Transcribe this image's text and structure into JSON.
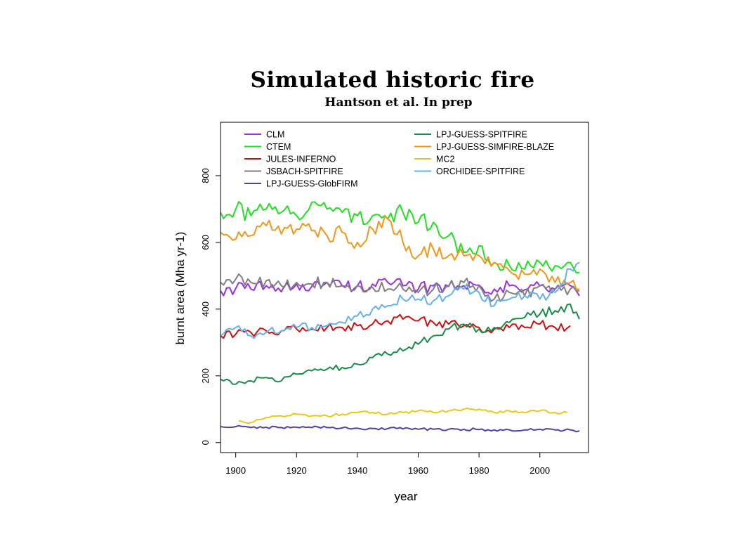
{
  "title": "Simulated historic fire",
  "subtitle": "Hantson et al. In prep",
  "chart_data": {
    "type": "line",
    "xlabel": "year",
    "ylabel": "burnt area (Mha yr-1)",
    "xlim": [
      1895,
      2016
    ],
    "ylim": [
      -30,
      960
    ],
    "xticks": [
      1900,
      1920,
      1940,
      1960,
      1980,
      2000
    ],
    "yticks": [
      0,
      200,
      400,
      600,
      800
    ],
    "legend": "top, two columns",
    "grid": false,
    "series": [
      {
        "name": "CLM",
        "color": "#9b30e0",
        "x": [
          1895,
          1900,
          1905,
          1910,
          1915,
          1920,
          1925,
          1930,
          1935,
          1940,
          1945,
          1950,
          1955,
          1960,
          1965,
          1970,
          1975,
          1980,
          1985,
          1990,
          1995,
          2000,
          2005,
          2010,
          2013
        ],
        "y": [
          455,
          462,
          460,
          470,
          452,
          475,
          468,
          480,
          470,
          470,
          475,
          480,
          470,
          460,
          470,
          468,
          470,
          472,
          460,
          470,
          458,
          470,
          460,
          470,
          440
        ]
      },
      {
        "name": "CTEM",
        "color": "#22e022",
        "x": [
          1895,
          1900,
          1905,
          1910,
          1915,
          1920,
          1925,
          1930,
          1935,
          1940,
          1945,
          1950,
          1955,
          1960,
          1965,
          1970,
          1975,
          1980,
          1985,
          1990,
          1995,
          2000,
          2005,
          2010,
          2013
        ],
        "y": [
          690,
          700,
          680,
          700,
          690,
          680,
          720,
          700,
          690,
          680,
          680,
          670,
          690,
          660,
          660,
          620,
          570,
          590,
          540,
          530,
          520,
          540,
          530,
          540,
          510
        ]
      },
      {
        "name": "JULES-INFERNO",
        "color": "#cc1111",
        "x": [
          1895,
          1900,
          1905,
          1910,
          1915,
          1920,
          1925,
          1930,
          1935,
          1940,
          1945,
          1950,
          1955,
          1960,
          1965,
          1970,
          1975,
          1980,
          1985,
          1990,
          1995,
          2000,
          2005,
          2010
        ],
        "y": [
          320,
          325,
          330,
          335,
          335,
          340,
          340,
          345,
          345,
          350,
          355,
          365,
          370,
          365,
          360,
          355,
          350,
          345,
          340,
          345,
          345,
          355,
          345,
          350
        ]
      },
      {
        "name": "JSBACH-SPITFIRE",
        "color": "#808080",
        "x": [
          1895,
          1900,
          1905,
          1910,
          1915,
          1920,
          1925,
          1930,
          1935,
          1940,
          1945,
          1950,
          1955,
          1960,
          1965,
          1970,
          1975,
          1980,
          1985,
          1990,
          1995,
          2000,
          2005,
          2010,
          2013
        ],
        "y": [
          480,
          490,
          480,
          485,
          470,
          480,
          475,
          480,
          470,
          470,
          465,
          460,
          460,
          450,
          460,
          470,
          480,
          470,
          430,
          450,
          440,
          470,
          460,
          460,
          455
        ]
      },
      {
        "name": "LPJ-GUESS-GlobFIRM",
        "color": "#5540a0",
        "x": [
          1895,
          1900,
          1905,
          1910,
          1915,
          1920,
          1925,
          1930,
          1935,
          1940,
          1945,
          1950,
          1955,
          1960,
          1965,
          1970,
          1975,
          1980,
          1985,
          1990,
          1995,
          2000,
          2005,
          2010,
          2013
        ],
        "y": [
          48,
          48,
          45,
          46,
          45,
          46,
          45,
          45,
          44,
          43,
          42,
          42,
          41,
          40,
          40,
          40,
          40,
          39,
          38,
          38,
          38,
          40,
          38,
          38,
          35
        ]
      },
      {
        "name": "LPJ-GUESS-SPITFIRE",
        "color": "#1a8c4a",
        "x": [
          1895,
          1900,
          1905,
          1910,
          1915,
          1920,
          1925,
          1930,
          1935,
          1940,
          1945,
          1950,
          1955,
          1960,
          1965,
          1970,
          1975,
          1980,
          1985,
          1990,
          1995,
          2000,
          2005,
          2010,
          2013
        ],
        "y": [
          190,
          175,
          185,
          195,
          185,
          205,
          215,
          220,
          225,
          235,
          255,
          265,
          275,
          295,
          320,
          340,
          355,
          340,
          345,
          360,
          375,
          385,
          395,
          415,
          370
        ]
      },
      {
        "name": "LPJ-GUESS-SIMFIRE-BLAZE",
        "color": "#f0981e",
        "x": [
          1895,
          1900,
          1905,
          1910,
          1915,
          1920,
          1925,
          1930,
          1935,
          1940,
          1945,
          1950,
          1955,
          1960,
          1965,
          1970,
          1975,
          1980,
          1985,
          1990,
          1995,
          2000,
          2005,
          2010,
          2013
        ],
        "y": [
          630,
          610,
          620,
          650,
          625,
          640,
          635,
          620,
          630,
          600,
          640,
          670,
          600,
          560,
          580,
          560,
          560,
          560,
          540,
          515,
          505,
          520,
          480,
          480,
          460
        ]
      },
      {
        "name": "MC2",
        "color": "#e8c81a",
        "x": [
          1901,
          1905,
          1910,
          1915,
          1920,
          1925,
          1930,
          1935,
          1940,
          1945,
          1950,
          1955,
          1960,
          1965,
          1970,
          1975,
          1980,
          1985,
          1990,
          1995,
          2000,
          2005,
          2009
        ],
        "y": [
          65,
          60,
          75,
          80,
          85,
          80,
          80,
          85,
          90,
          90,
          85,
          90,
          95,
          90,
          95,
          100,
          100,
          90,
          95,
          90,
          95,
          90,
          90
        ]
      },
      {
        "name": "ORCHIDEE-SPITFIRE",
        "color": "#66b2e8",
        "x": [
          1895,
          1900,
          1905,
          1910,
          1915,
          1920,
          1925,
          1930,
          1935,
          1940,
          1945,
          1950,
          1955,
          1960,
          1965,
          1970,
          1975,
          1980,
          1985,
          1990,
          1995,
          2000,
          2005,
          2010,
          2013
        ],
        "y": [
          320,
          345,
          320,
          330,
          335,
          345,
          345,
          350,
          360,
          380,
          400,
          410,
          430,
          430,
          425,
          440,
          460,
          450,
          410,
          430,
          440,
          430,
          450,
          520,
          540
        ]
      }
    ]
  }
}
